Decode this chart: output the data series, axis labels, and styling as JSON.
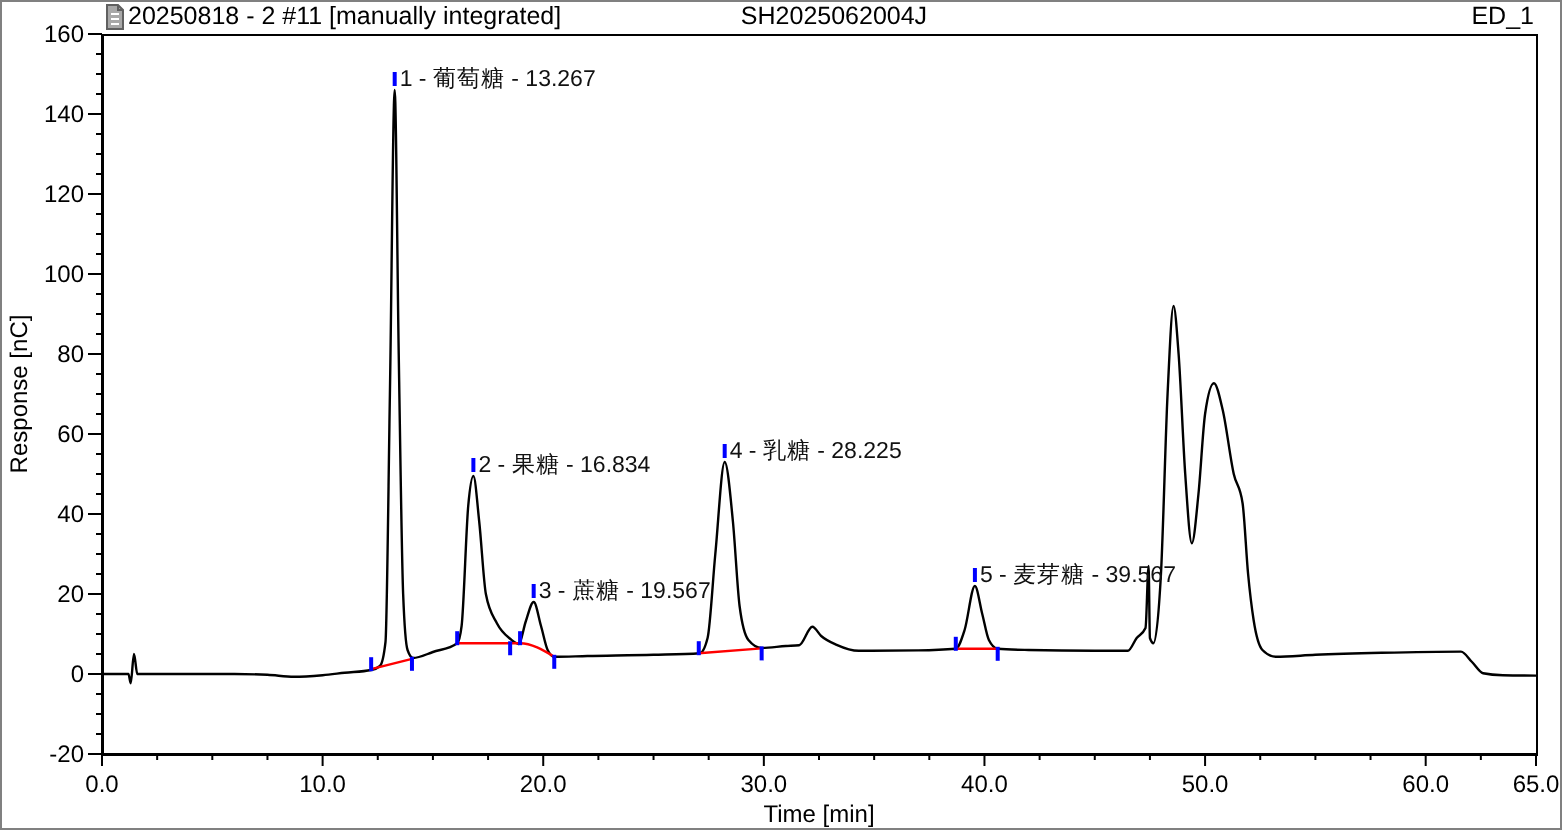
{
  "chart_data": {
    "type": "line",
    "title": "20250818 - 2 #11 [manually integrated]",
    "subtitle": "SH2025062004J",
    "xlabel": "Time [min]",
    "ylabel": "Response [nC]",
    "annotations": [
      "ED_1",
      {
        "text": "1 - 葡萄糖 - 13.267",
        "x": 13.267,
        "y": 146
      },
      {
        "text": "2 - 果糖 - 16.834",
        "x": 16.834,
        "y": 49.5
      },
      {
        "text": "3 - 蔗糖 - 19.567",
        "x": 19.567,
        "y": 18
      },
      {
        "text": "4 - 乳糖 - 28.225",
        "x": 28.225,
        "y": 53
      },
      {
        "text": "5 - 麦芽糖 - 39.567",
        "x": 39.567,
        "y": 22
      }
    ],
    "series": [
      {
        "color": "#000000",
        "x": [
          0,
          1.2,
          1.3,
          1.45,
          1.6,
          3,
          6,
          7.5,
          8.7,
          10,
          11,
          12.2,
          12.6,
          12.85,
          13.05,
          13.267,
          13.45,
          13.65,
          13.85,
          14.1,
          15,
          16.1,
          16.3,
          16.6,
          16.834,
          17.1,
          17.4,
          17.9,
          18.5,
          18.9,
          19.2,
          19.567,
          19.9,
          20.2,
          20.5,
          22,
          25,
          27.1,
          27.45,
          27.8,
          28.225,
          28.6,
          28.9,
          29.3,
          29.9,
          31,
          31.6,
          32.2,
          32.6,
          33.3,
          34.3,
          37,
          38.7,
          39.1,
          39.567,
          39.9,
          40.2,
          40.6,
          42,
          45,
          46.5,
          46.9,
          47.3,
          47.44,
          47.5,
          47.66,
          48.0,
          48.3,
          48.57,
          48.8,
          49.1,
          49.4,
          49.7,
          50.0,
          50.4,
          50.8,
          51.3,
          51.7,
          51.95,
          52.2,
          52.6,
          53.2,
          55,
          58,
          61.6,
          62.1,
          62.6,
          63.5,
          65
        ],
        "values": [
          0,
          0,
          -2.3,
          5,
          0,
          0,
          0,
          -0.2,
          -0.7,
          -0.3,
          0.3,
          1,
          2,
          8,
          70,
          146,
          80,
          20,
          6,
          4,
          5.5,
          7.7,
          12,
          42,
          49.5,
          38,
          20,
          12.7,
          8.8,
          7.5,
          13,
          18,
          12,
          6,
          4.3,
          4.5,
          4.8,
          5.2,
          9,
          30,
          53,
          38,
          17,
          8.5,
          6.5,
          7,
          7.2,
          11.8,
          9.5,
          7.3,
          5.8,
          5.9,
          6.3,
          11,
          22,
          15,
          8.5,
          6.3,
          6,
          5.8,
          5.8,
          9,
          11.5,
          27,
          9,
          7.7,
          25,
          70,
          92,
          80,
          50,
          32.7,
          45,
          65,
          72.7,
          66,
          50,
          42.7,
          25,
          13.5,
          6,
          4.3,
          4.8,
          5.3,
          5.6,
          3,
          0.2,
          -0.3,
          -0.4
        ]
      },
      {
        "type": "line",
        "color": "#ff0000",
        "x": [
          12.2,
          14.05
        ],
        "values": [
          1.2,
          3.8
        ]
      },
      {
        "type": "line",
        "color": "#ff0000",
        "x": [
          16.1,
          18.5,
          18.95,
          20.5
        ],
        "values": [
          7.7,
          7.7,
          7.7,
          4.3
        ]
      },
      {
        "type": "line",
        "color": "#ff0000",
        "x": [
          27.05,
          29.9
        ],
        "values": [
          5.2,
          6.4
        ]
      },
      {
        "type": "line",
        "color": "#ff0000",
        "x": [
          38.7,
          40.6
        ],
        "values": [
          6.3,
          6.3
        ]
      }
    ],
    "xlim": [
      0,
      65
    ],
    "xticks": [
      {
        "value": 0,
        "label": "0.0"
      },
      {
        "value": 2.5,
        "label": null
      },
      {
        "value": 5,
        "label": null
      },
      {
        "value": 7.5,
        "label": null
      },
      {
        "value": 10,
        "label": "10.0"
      },
      {
        "value": 12.5,
        "label": null
      },
      {
        "value": 15,
        "label": null
      },
      {
        "value": 17.5,
        "label": null
      },
      {
        "value": 20,
        "label": "20.0"
      },
      {
        "value": 22.5,
        "label": null
      },
      {
        "value": 25,
        "label": null
      },
      {
        "value": 27.5,
        "label": null
      },
      {
        "value": 30,
        "label": "30.0"
      },
      {
        "value": 32.5,
        "label": null
      },
      {
        "value": 35,
        "label": null
      },
      {
        "value": 37.5,
        "label": null
      },
      {
        "value": 40,
        "label": "40.0"
      },
      {
        "value": 42.5,
        "label": null
      },
      {
        "value": 45,
        "label": null
      },
      {
        "value": 47.5,
        "label": null
      },
      {
        "value": 50,
        "label": "50.0"
      },
      {
        "value": 52.5,
        "label": null
      },
      {
        "value": 55,
        "label": null
      },
      {
        "value": 57.5,
        "label": null
      },
      {
        "value": 60,
        "label": "60.0"
      },
      {
        "value": 62.5,
        "label": null
      },
      {
        "value": 65,
        "label": "65.0"
      }
    ],
    "ylim": [
      -20,
      160
    ],
    "yticks": [
      -20,
      {
        "value": -15,
        "label": null
      },
      {
        "value": -10,
        "label": null
      },
      {
        "value": -5,
        "label": null
      },
      0,
      {
        "value": 5,
        "label": null
      },
      {
        "value": 10,
        "label": null
      },
      {
        "value": 15,
        "label": null
      },
      20,
      {
        "value": 25,
        "label": null
      },
      {
        "value": 30,
        "label": null
      },
      {
        "value": 35,
        "label": null
      },
      40,
      {
        "value": 45,
        "label": null
      },
      {
        "value": 50,
        "label": null
      },
      {
        "value": 55,
        "label": null
      },
      60,
      {
        "value": 65,
        "label": null
      },
      {
        "value": 70,
        "label": null
      },
      {
        "value": 75,
        "label": null
      },
      80,
      {
        "value": 85,
        "label": null
      },
      {
        "value": 90,
        "label": null
      },
      {
        "value": 95,
        "label": null
      },
      100,
      {
        "value": 105,
        "label": null
      },
      {
        "value": 110,
        "label": null
      },
      {
        "value": 115,
        "label": null
      },
      120,
      {
        "value": 125,
        "label": null
      },
      {
        "value": 130,
        "label": null
      },
      {
        "value": 135,
        "label": null
      },
      140,
      {
        "value": 145,
        "label": null
      },
      {
        "value": 150,
        "label": null
      },
      {
        "value": 155,
        "label": null
      },
      160
    ]
  }
}
